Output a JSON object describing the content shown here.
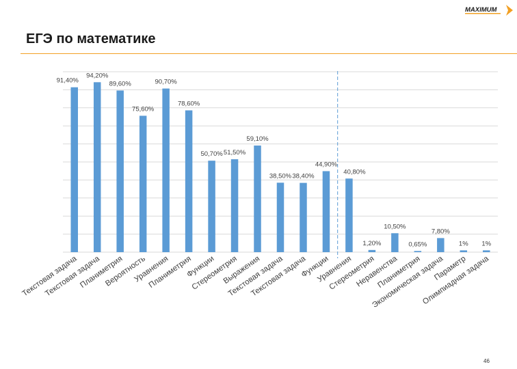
{
  "slide": {
    "title": "ЕГЭ по математике",
    "page_number": "46",
    "logo_text": "MAXIMUM",
    "accent_color": "#f2a023",
    "bar_color": "#5b9bd5"
  },
  "chart_data": {
    "type": "bar",
    "categories": [
      "Текстовая задача",
      "Текстовая задача",
      "Планиметрия",
      "Вероятность",
      "Уравнения",
      "Планиметрия",
      "Функции",
      "Стереометрия",
      "Выражения",
      "Текстовая задача",
      "Текстовая задача",
      "Функции",
      "Уравнения",
      "Стереометрия",
      "Неравенства",
      "Планиметрия",
      "Экономическая задача",
      "Параметр",
      "Олимпиадная задача"
    ],
    "values": [
      91.4,
      94.2,
      89.6,
      75.6,
      90.7,
      78.6,
      50.7,
      51.5,
      59.1,
      38.5,
      38.4,
      44.9,
      40.8,
      1.2,
      10.5,
      0.65,
      7.8,
      1,
      1
    ],
    "data_labels": [
      "91,40%",
      "94,20%",
      "89,60%",
      "75,60%",
      "90,70%",
      "78,60%",
      "50,70%",
      "51,50%",
      "59,10%",
      "38,50%",
      "38,40%",
      "44,90%",
      "40,80%",
      "1,20%",
      "10,50%",
      "0,65%",
      "7,80%",
      "1%",
      "1%"
    ],
    "ylim": [
      0,
      100
    ],
    "grid": true,
    "divider_after_category_index": 11,
    "bar_color": "#5b9bd5"
  }
}
